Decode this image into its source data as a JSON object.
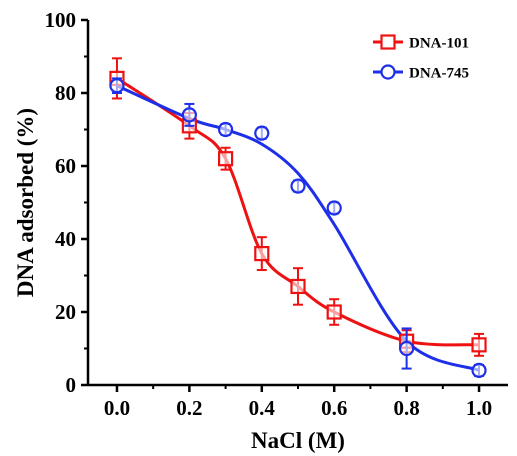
{
  "chart_data": {
    "type": "scatter",
    "xlabel": "NaCl (M)",
    "ylabel": "DNA adsorbed (%)",
    "xlim": [
      -0.08,
      1.08
    ],
    "ylim": [
      0,
      100
    ],
    "x_ticks": [
      0.0,
      0.2,
      0.4,
      0.6,
      0.8,
      1.0
    ],
    "x_tick_labels": [
      "0.0",
      "0.2",
      "0.4",
      "0.6",
      "0.8",
      "1.0"
    ],
    "y_ticks": [
      0,
      20,
      40,
      60,
      80,
      100
    ],
    "y_tick_labels": [
      "0",
      "20",
      "40",
      "60",
      "80",
      "100"
    ],
    "grid": false,
    "legend_position": "top-right",
    "series": [
      {
        "name": "DNA-101",
        "color": "#ee1111",
        "marker": "square",
        "x": [
          0.0,
          0.2,
          0.3,
          0.4,
          0.5,
          0.6,
          0.8,
          1.0
        ],
        "y": [
          84,
          71,
          62,
          36,
          27,
          20,
          12,
          11
        ],
        "err": [
          5.5,
          3.5,
          3.0,
          4.5,
          5.0,
          3.5,
          3.0,
          3.0
        ],
        "fit_y": [
          84,
          71,
          62,
          36,
          27,
          20,
          12,
          11
        ]
      },
      {
        "name": "DNA-745",
        "color": "#1d2fe8",
        "marker": "circle",
        "x": [
          0.0,
          0.2,
          0.3,
          0.4,
          0.5,
          0.6,
          0.8,
          1.0
        ],
        "y": [
          82,
          74,
          70,
          69,
          54.5,
          48.5,
          10,
          4
        ],
        "err": [
          2.0,
          3.0,
          1.5,
          1.5,
          1.5,
          1.5,
          5.5,
          1.5
        ],
        "fit_y": [
          82,
          73,
          70,
          66,
          58,
          44,
          12,
          4
        ]
      }
    ]
  }
}
